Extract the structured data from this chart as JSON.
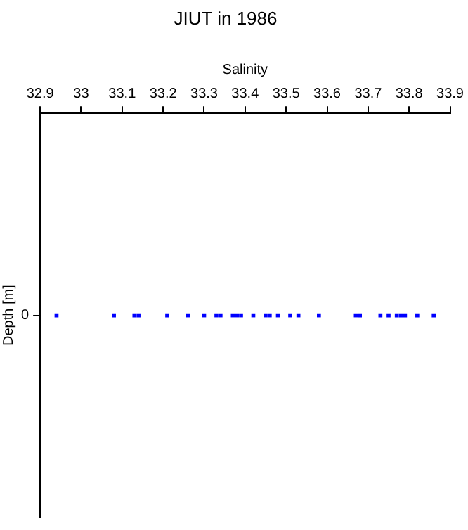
{
  "chart_data": {
    "type": "scatter",
    "title": "JIUT in 1986",
    "xlabel": "Salinity",
    "ylabel": "Depth [m]",
    "orientation": "horizontal",
    "categories": [
      "0"
    ],
    "series": [
      {
        "color": "#0000ff",
        "x": [
          "0",
          "0",
          "0",
          "0",
          "0",
          "0",
          "0",
          "0",
          "0",
          "0",
          "0",
          "0",
          "0",
          "0",
          "0",
          "0",
          "0",
          "0",
          "0",
          "0",
          "0",
          "0",
          "0",
          "0",
          "0",
          "0",
          "0",
          "0"
        ],
        "values": [
          32.94,
          33.08,
          33.13,
          33.14,
          33.21,
          33.26,
          33.3,
          33.33,
          33.34,
          33.37,
          33.38,
          33.39,
          33.42,
          33.45,
          33.46,
          33.48,
          33.51,
          33.53,
          33.58,
          33.67,
          33.68,
          33.73,
          33.75,
          33.77,
          33.78,
          33.79,
          33.82,
          33.86
        ]
      }
    ],
    "xlim": [
      32.9,
      33.9
    ],
    "xticks": [
      32.9,
      33,
      33.1,
      33.2,
      33.3,
      33.4,
      33.5,
      33.6,
      33.7,
      33.8,
      33.9
    ],
    "grid": false,
    "legend": false,
    "marker": "square"
  }
}
